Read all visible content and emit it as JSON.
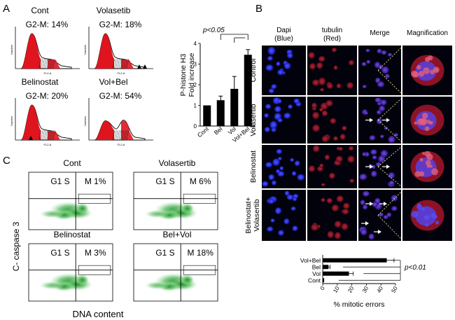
{
  "panel_a": {
    "letter": "A",
    "histograms": [
      {
        "label": "Cont",
        "g2m": "G2-M: 14%"
      },
      {
        "label": "Volasetib",
        "g2m": "G2-M: 18%"
      },
      {
        "label": "Belinostat",
        "g2m": "G2-M: 20%"
      },
      {
        "label": "Vol+Bel",
        "g2m": "G2-M: 54%"
      }
    ],
    "axis_y": "Number",
    "axis_x": "FL2-A"
  },
  "chart_data": {
    "type": "bar",
    "categories": [
      "Cont",
      "Bel",
      "Vol",
      "Vol+Bel"
    ],
    "values": [
      1.0,
      1.25,
      1.8,
      3.45
    ],
    "errors": [
      0.0,
      0.2,
      0.6,
      0.25
    ],
    "ylabel": "P-histone H3\nFold increase",
    "ylim": [
      0,
      4
    ],
    "yticks": [
      "0",
      "1",
      "2",
      "3",
      "4"
    ],
    "annotation": "p<0.05"
  },
  "panel_b": {
    "letter": "B",
    "col_headers": [
      "Dapi\n(Blue)",
      "tubulin\n(Red)",
      "Merge",
      "Magnification"
    ],
    "row_labels": [
      "Control",
      "Volasertib",
      "Belinostat",
      "Belinostat+\nVolasertib"
    ]
  },
  "mitotic_chart": {
    "type": "bar",
    "categories": [
      "Vol+Bel",
      "Bel",
      "Vol",
      "Cont"
    ],
    "values": [
      44,
      4,
      18,
      1
    ],
    "errors": [
      5,
      1,
      3,
      0
    ],
    "xlabel": "% mitotic errors",
    "xticks": [
      "0",
      "10",
      "20",
      "30",
      "40",
      "50"
    ],
    "xlim": [
      0,
      50
    ],
    "annotation": "p<0.01"
  },
  "panel_c": {
    "letter": "C",
    "plots": [
      {
        "title": "Cont",
        "g1s": "G1 S",
        "m": "M 1%"
      },
      {
        "title": "Volasertib",
        "g1s": "G1 S",
        "m": "M 6%"
      },
      {
        "title": "Belinostat",
        "g1s": "G1 S",
        "m": "M 3%"
      },
      {
        "title": "Bel+Vol",
        "g1s": "G1 S",
        "m": "M 18%"
      }
    ],
    "ylabel": "C- caspase 3",
    "xlabel": "DNA content"
  }
}
